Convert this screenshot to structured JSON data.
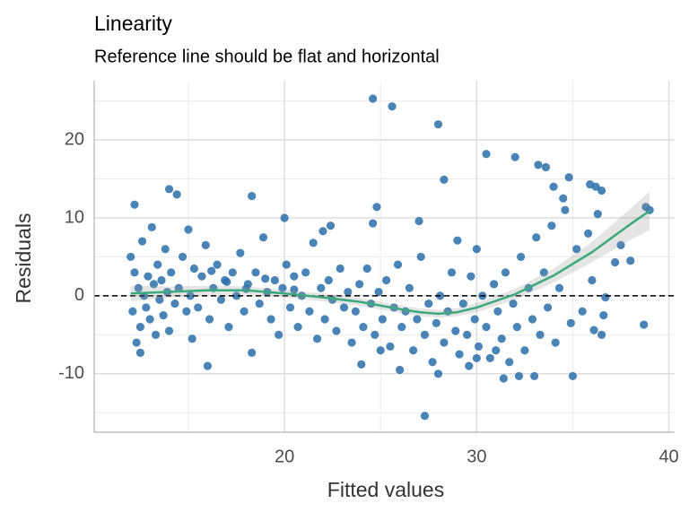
{
  "chart_data": {
    "type": "scatter",
    "title": "Linearity",
    "subtitle": "Reference line should be flat and horizontal",
    "x_label": "Fitted values",
    "y_label": "Residuals",
    "xlim": [
      10.1,
      40.3
    ],
    "ylim": [
      -17.5,
      27.6
    ],
    "xticks": [
      20,
      30,
      40
    ],
    "yticks": [
      -10,
      0,
      10,
      20
    ],
    "x_minor_ticks": [
      15,
      25,
      35
    ],
    "y_minor_ticks": [
      -15,
      -5,
      5,
      15,
      25
    ],
    "grid": true,
    "reference_line": 0,
    "series": [
      {
        "color": "#2a6faa",
        "x": [
          24.6,
          25.6,
          28,
          30.5,
          32,
          33.2,
          33.6,
          34.8,
          35.9,
          36.2,
          36.5,
          14,
          14.4,
          18.3,
          12.2,
          38.8,
          39,
          28.3,
          27.3,
          26,
          16,
          12.5,
          31.4,
          32.2,
          33,
          35,
          36.5,
          38.7,
          37.2,
          36.7,
          36.1,
          34.5,
          34,
          31,
          30,
          29.6,
          28,
          24,
          25,
          20,
          22,
          22.4,
          24.8,
          24.6,
          27,
          29,
          30,
          12,
          12.1,
          12.2,
          12.3,
          12.4,
          12.5,
          12.6,
          12.7,
          12.8,
          12.9,
          13,
          13.1,
          13.2,
          13.3,
          13.4,
          13.5,
          13.6,
          13.7,
          13.8,
          13.9,
          14,
          14.1,
          14.3,
          14.5,
          14.7,
          14.9,
          15,
          15.1,
          15.2,
          15.3,
          15.5,
          15.7,
          15.9,
          16.1,
          16.3,
          16.5,
          16.7,
          16.9,
          17.1,
          17.3,
          17.5,
          17.7,
          17.9,
          18.1,
          18.3,
          18.5,
          18.7,
          18.9,
          19.1,
          19.3,
          19.5,
          19.7,
          19.9,
          20.1,
          20.3,
          20.5,
          20.7,
          20.9,
          21.1,
          21.3,
          21.5,
          21.7,
          21.9,
          22.1,
          22.3,
          22.5,
          22.7,
          22.9,
          23.1,
          23.3,
          23.5,
          23.7,
          23.9,
          24.1,
          24.3,
          24.5,
          24.7,
          24.9,
          25.1,
          25.3,
          25.5,
          25.7,
          25.9,
          26.1,
          26.3,
          26.5,
          26.7,
          26.9,
          27.1,
          27.3,
          27.5,
          27.7,
          27.9,
          28.1,
          28.3,
          28.5,
          28.7,
          28.9,
          29.1,
          29.3,
          29.5,
          29.7,
          29.9,
          30.1,
          30.3,
          30.5,
          30.7,
          30.9,
          31.1,
          31.3,
          31.5,
          31.7,
          31.9,
          32.1,
          32.3,
          32.5,
          32.7,
          32.9,
          33.1,
          33.3,
          33.5,
          33.7,
          33.9,
          34.1,
          34.3,
          34.6,
          34.9,
          35.2,
          35.5,
          35.8,
          36,
          36.3,
          36.6,
          37.5,
          38,
          16.2,
          17,
          18,
          19,
          20.5
        ],
        "values": [
          25.3,
          24.3,
          22,
          18.2,
          17.8,
          16.8,
          16.5,
          15.2,
          14.3,
          14,
          13.5,
          13.7,
          13,
          12.8,
          11.7,
          11.4,
          11,
          14.9,
          -15.4,
          -9.5,
          -9,
          -7.3,
          -10.6,
          -10.3,
          -10.3,
          -10.3,
          -5,
          -3.7,
          4.3,
          -0.2,
          -4.4,
          12.5,
          14,
          -7,
          -8,
          -9,
          -10,
          -8.8,
          -7,
          10,
          8.3,
          9,
          11.4,
          9.3,
          9.6,
          7.1,
          6,
          5,
          -2,
          3,
          -6,
          1,
          -4,
          7,
          0,
          -1.5,
          2.5,
          -3,
          8.8,
          1.5,
          -5,
          4,
          -0.5,
          2,
          -2.5,
          6,
          0.5,
          -4.5,
          3,
          -1,
          1,
          5,
          -2,
          8.5,
          0,
          -5.5,
          3.5,
          -1.5,
          2.5,
          6.5,
          -3,
          1,
          4,
          -0.5,
          2,
          -4,
          3,
          0,
          5.5,
          -2,
          1.5,
          -7.3,
          3,
          -1,
          7.5,
          0.5,
          -3,
          2,
          -5,
          1,
          4,
          -1.5,
          2.5,
          -4,
          0,
          3,
          -2,
          6.8,
          -5.5,
          1,
          -3,
          2,
          -0.5,
          -4.5,
          3.5,
          -1.5,
          0.5,
          -6,
          -2,
          1.5,
          -4,
          3.5,
          -1,
          -5,
          0.5,
          -3,
          2,
          -6.5,
          -1.5,
          4,
          -4,
          -2,
          1,
          -7,
          -3,
          5,
          -5,
          -1,
          -8.5,
          -3.5,
          0,
          -6,
          -2,
          3,
          -4.5,
          -7.5,
          -1,
          -5,
          2.5,
          -3,
          -6.5,
          0,
          -4,
          -8,
          1.5,
          -2,
          -5.5,
          3,
          -8.5,
          -1,
          -4,
          5,
          -7,
          1,
          -3,
          7.5,
          -5,
          3,
          -1.5,
          9,
          -6,
          1,
          11,
          -3.5,
          6,
          -2,
          8,
          2,
          10.5,
          -2.5,
          6.5,
          4.5,
          3.2,
          1.8,
          0.9,
          2.2,
          0.8
        ]
      }
    ],
    "trend": {
      "color": "#3aaa7e",
      "x": [
        12,
        14,
        16,
        18,
        20,
        22,
        24,
        26,
        27,
        28,
        29,
        30,
        32,
        34,
        36,
        38,
        39
      ],
      "values": [
        0.3,
        0.5,
        0.7,
        0.7,
        0.3,
        -0.2,
        -0.8,
        -1.7,
        -2.1,
        -2.3,
        -2.1,
        -1.5,
        0.2,
        2.6,
        5.6,
        9.2,
        10.9
      ],
      "lower": [
        -0.7,
        -0.2,
        0.1,
        0.2,
        -0.2,
        -0.7,
        -1.3,
        -2.2,
        -2.6,
        -2.8,
        -2.6,
        -2.1,
        -0.5,
        1.7,
        4.3,
        7.2,
        8.4
      ],
      "upper": [
        1.3,
        1.2,
        1.3,
        1.2,
        0.8,
        0.3,
        -0.3,
        -1.2,
        -1.6,
        -1.8,
        -1.6,
        -0.9,
        0.9,
        3.5,
        6.9,
        11.2,
        13.4
      ]
    }
  }
}
